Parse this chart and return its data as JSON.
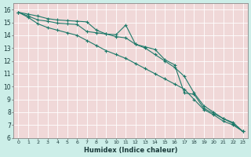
{
  "xlabel": "Humidex (Indice chaleur)",
  "background_color": "#cceee8",
  "grid_bg_color": "#f0d8d8",
  "grid_color": "#ffffff",
  "line_color": "#1e7a6a",
  "x": [
    0,
    1,
    2,
    3,
    4,
    5,
    6,
    7,
    8,
    9,
    10,
    11,
    12,
    13,
    14,
    15,
    16,
    17,
    18,
    19,
    20,
    21,
    22,
    23
  ],
  "line1": [
    15.8,
    15.65,
    15.5,
    15.3,
    15.2,
    15.15,
    15.1,
    15.05,
    14.4,
    14.1,
    14.05,
    14.8,
    13.3,
    13.1,
    12.9,
    12.1,
    11.7,
    9.5,
    9.4,
    8.3,
    7.9,
    7.5,
    7.2,
    6.5
  ],
  "line2": [
    15.8,
    15.5,
    15.2,
    15.1,
    14.95,
    14.9,
    14.85,
    14.3,
    14.2,
    14.1,
    13.9,
    13.8,
    13.3,
    13.0,
    12.5,
    12.0,
    11.5,
    10.8,
    9.5,
    8.5,
    8.0,
    7.5,
    7.1,
    6.5
  ],
  "line3": [
    15.8,
    15.4,
    14.9,
    14.6,
    14.4,
    14.2,
    14.0,
    13.6,
    13.2,
    12.8,
    12.5,
    12.2,
    11.8,
    11.4,
    11.0,
    10.6,
    10.2,
    9.8,
    9.0,
    8.2,
    7.8,
    7.3,
    7.0,
    6.5
  ],
  "ylim": [
    6,
    16.5
  ],
  "xlim": [
    -0.5,
    23.5
  ],
  "yticks": [
    6,
    7,
    8,
    9,
    10,
    11,
    12,
    13,
    14,
    15,
    16
  ],
  "xticks": [
    0,
    1,
    2,
    3,
    4,
    5,
    6,
    7,
    8,
    9,
    10,
    11,
    12,
    13,
    14,
    15,
    16,
    17,
    18,
    19,
    20,
    21,
    22,
    23
  ]
}
